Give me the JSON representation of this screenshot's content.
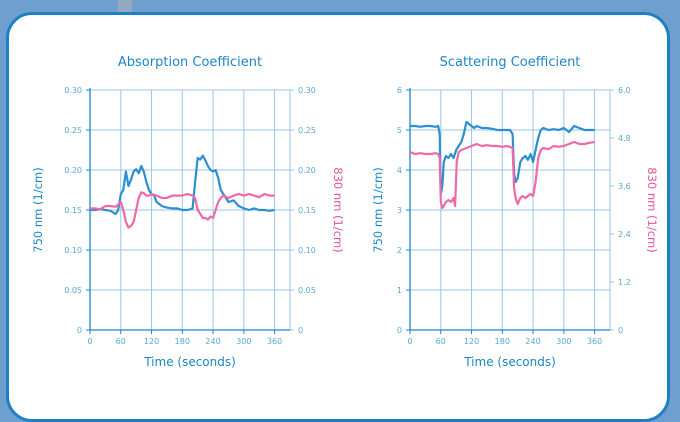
{
  "colors": {
    "series_750": "#2c8fd0",
    "series_830": "#ee6aa7",
    "frame": "#1d7fc4",
    "axis_text": "#1d86c8"
  },
  "chart_data": [
    {
      "type": "line",
      "title": "Absorption Coefficient",
      "xlabel": "Time (seconds)",
      "ylabel_left": "750 nm (1/cm)",
      "ylabel_right": "830 nm (1/cm)",
      "xlim": [
        0,
        390
      ],
      "ylim_left": [
        0,
        0.3
      ],
      "ylim_right": [
        0,
        0.3
      ],
      "x_ticks": [
        0,
        60,
        120,
        180,
        240,
        300,
        360
      ],
      "x_tick_labels": [
        "0",
        "60",
        "120",
        "180",
        "240",
        "300",
        "360"
      ],
      "y_ticks_left": [
        0,
        0.05,
        0.1,
        0.15,
        0.2,
        0.25,
        0.3
      ],
      "y_tick_labels_left": [
        "0",
        "0.05",
        "0.10",
        "0.15",
        "0.20",
        "0.25",
        "0.30"
      ],
      "y_ticks_right": [
        0,
        0.05,
        0.1,
        0.15,
        0.2,
        0.25,
        0.3
      ],
      "y_tick_labels_right": [
        "0",
        "0.05",
        "0.10",
        "0.15",
        "0.20",
        "0.25",
        "0.30"
      ],
      "grid": true,
      "series": [
        {
          "axis": "left",
          "color": "#2c8fd0",
          "x": [
            0,
            10,
            20,
            30,
            40,
            50,
            55,
            60,
            65,
            70,
            75,
            80,
            85,
            90,
            95,
            100,
            105,
            110,
            115,
            120,
            125,
            130,
            140,
            150,
            160,
            170,
            180,
            190,
            200,
            205,
            210,
            215,
            220,
            225,
            230,
            235,
            240,
            245,
            250,
            255,
            260,
            265,
            270,
            280,
            290,
            300,
            310,
            320,
            330,
            340,
            350,
            360
          ],
          "y": [
            0.15,
            0.15,
            0.151,
            0.15,
            0.149,
            0.145,
            0.15,
            0.17,
            0.175,
            0.198,
            0.18,
            0.188,
            0.198,
            0.201,
            0.196,
            0.205,
            0.198,
            0.185,
            0.175,
            0.17,
            0.168,
            0.16,
            0.155,
            0.153,
            0.152,
            0.152,
            0.15,
            0.15,
            0.152,
            0.185,
            0.215,
            0.213,
            0.218,
            0.212,
            0.205,
            0.2,
            0.198,
            0.2,
            0.19,
            0.175,
            0.17,
            0.165,
            0.16,
            0.162,
            0.155,
            0.152,
            0.15,
            0.152,
            0.15,
            0.15,
            0.149,
            0.15
          ]
        },
        {
          "axis": "right",
          "color": "#ee6aa7",
          "x": [
            0,
            10,
            20,
            30,
            40,
            50,
            55,
            60,
            65,
            70,
            75,
            80,
            85,
            90,
            95,
            100,
            105,
            110,
            115,
            120,
            130,
            140,
            150,
            160,
            170,
            180,
            190,
            200,
            205,
            210,
            215,
            220,
            225,
            230,
            235,
            240,
            245,
            250,
            255,
            260,
            270,
            280,
            290,
            300,
            310,
            320,
            330,
            340,
            350,
            360
          ],
          "y": [
            0.152,
            0.152,
            0.151,
            0.155,
            0.155,
            0.154,
            0.157,
            0.16,
            0.15,
            0.135,
            0.128,
            0.13,
            0.135,
            0.15,
            0.165,
            0.172,
            0.171,
            0.168,
            0.168,
            0.17,
            0.168,
            0.165,
            0.165,
            0.168,
            0.168,
            0.168,
            0.17,
            0.168,
            0.165,
            0.15,
            0.145,
            0.14,
            0.14,
            0.138,
            0.142,
            0.14,
            0.15,
            0.16,
            0.165,
            0.168,
            0.165,
            0.168,
            0.17,
            0.168,
            0.17,
            0.168,
            0.166,
            0.17,
            0.168,
            0.168
          ]
        }
      ]
    },
    {
      "type": "line",
      "title": "Scattering Coefficient",
      "xlabel": "Time (seconds)",
      "ylabel_left": "750 nm (1/cm)",
      "ylabel_right": "830 nm (1/cm)",
      "xlim": [
        0,
        390
      ],
      "ylim_left": [
        0,
        6
      ],
      "ylim_right": [
        0,
        6.0
      ],
      "x_ticks": [
        0,
        60,
        120,
        180,
        240,
        300,
        360
      ],
      "x_tick_labels": [
        "0",
        "60",
        "120",
        "180",
        "240",
        "300",
        "360"
      ],
      "y_ticks_left": [
        0,
        1,
        2,
        3,
        4,
        5,
        6
      ],
      "y_tick_labels_left": [
        "0",
        "1",
        "2",
        "3",
        "4",
        "5",
        "6"
      ],
      "y_ticks_right": [
        0,
        1.2,
        2.4,
        3.6,
        4.8,
        6.0
      ],
      "y_tick_labels_right": [
        "0",
        "1.2",
        "2.4",
        "3.6",
        "4.8",
        "6.0"
      ],
      "grid": true,
      "series": [
        {
          "axis": "left",
          "color": "#2c8fd0",
          "x": [
            0,
            10,
            20,
            30,
            40,
            50,
            55,
            58,
            60,
            63,
            66,
            70,
            75,
            80,
            85,
            90,
            95,
            100,
            105,
            110,
            115,
            120,
            125,
            130,
            140,
            150,
            160,
            170,
            180,
            190,
            195,
            200,
            203,
            206,
            210,
            215,
            220,
            225,
            230,
            235,
            240,
            245,
            250,
            255,
            260,
            270,
            280,
            290,
            300,
            310,
            320,
            330,
            340,
            350,
            360
          ],
          "y": [
            5.1,
            5.1,
            5.08,
            5.1,
            5.1,
            5.08,
            5.1,
            4.9,
            3.4,
            3.6,
            4.2,
            4.35,
            4.3,
            4.4,
            4.3,
            4.5,
            4.6,
            4.7,
            4.9,
            5.2,
            5.15,
            5.1,
            5.05,
            5.1,
            5.05,
            5.05,
            5.03,
            5.0,
            5.0,
            5.0,
            5.0,
            4.9,
            3.9,
            3.7,
            3.8,
            4.2,
            4.3,
            4.35,
            4.25,
            4.4,
            4.2,
            4.5,
            4.8,
            5.0,
            5.05,
            5.0,
            5.02,
            5.0,
            5.05,
            4.95,
            5.1,
            5.05,
            5.0,
            5.0,
            5.0
          ]
        },
        {
          "axis": "right",
          "color": "#ee6aa7",
          "x": [
            0,
            10,
            20,
            30,
            40,
            50,
            55,
            58,
            60,
            63,
            66,
            70,
            75,
            80,
            85,
            88,
            91,
            95,
            100,
            110,
            120,
            130,
            140,
            150,
            160,
            170,
            180,
            190,
            200,
            203,
            206,
            210,
            215,
            220,
            225,
            230,
            235,
            240,
            245,
            250,
            255,
            260,
            270,
            280,
            290,
            300,
            310,
            320,
            330,
            340,
            350,
            360
          ],
          "y": [
            4.45,
            4.4,
            4.42,
            4.4,
            4.4,
            4.42,
            4.4,
            4.3,
            3.2,
            3.05,
            3.1,
            3.2,
            3.25,
            3.2,
            3.3,
            3.1,
            4.2,
            4.45,
            4.5,
            4.55,
            4.6,
            4.65,
            4.6,
            4.62,
            4.6,
            4.6,
            4.58,
            4.6,
            4.55,
            3.55,
            3.3,
            3.15,
            3.3,
            3.35,
            3.3,
            3.35,
            3.4,
            3.35,
            3.7,
            4.3,
            4.5,
            4.55,
            4.52,
            4.6,
            4.58,
            4.6,
            4.65,
            4.7,
            4.65,
            4.65,
            4.68,
            4.7
          ]
        }
      ]
    }
  ]
}
